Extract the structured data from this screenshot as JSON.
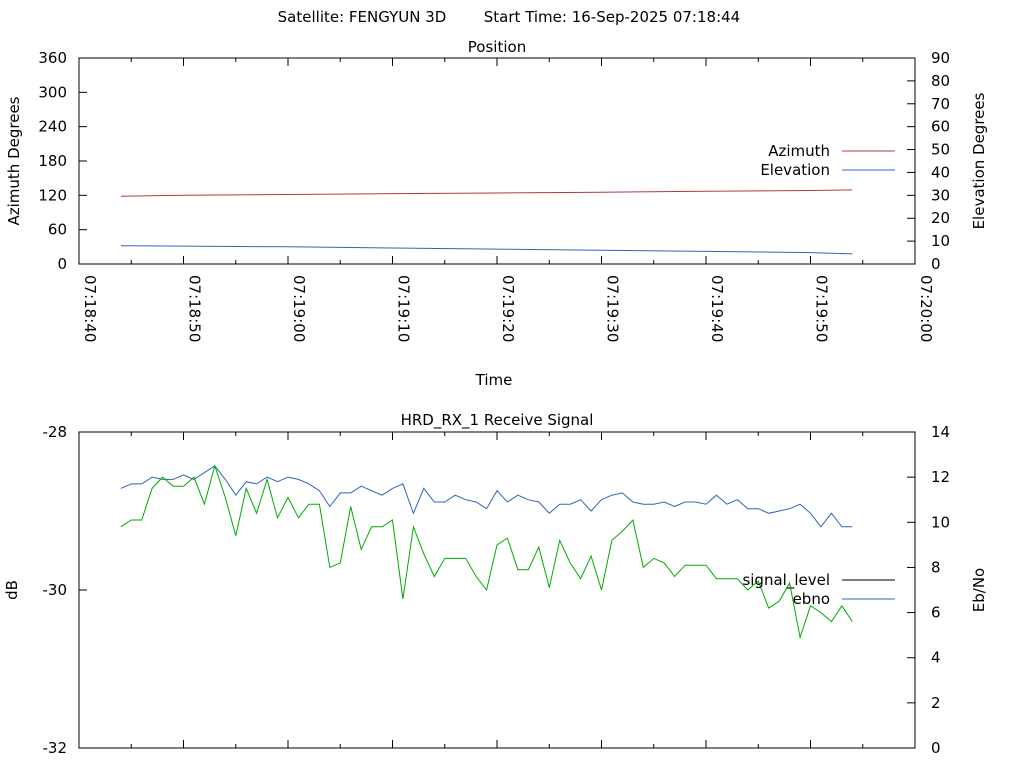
{
  "header": {
    "satellite": "Satellite: FENGYUN 3D",
    "start_time": "Start Time: 16-Sep-2025 07:18:44"
  },
  "colors": {
    "azimuth": "#b03a3a",
    "elevation": "#2f64b8",
    "signal_level": "#000000",
    "signal_trace": "#00aa00",
    "ebno": "#2f64b8",
    "axis": "#000000"
  },
  "chart_data": [
    {
      "type": "line",
      "title": "Position",
      "xlabel": "Time",
      "ylabel": "Azimuth Degrees",
      "y2label": "Elevation Degrees",
      "xlim": [
        "07:18:40",
        "07:20:00"
      ],
      "x_ticks": [
        "07:18:40",
        "07:18:50",
        "07:19:00",
        "07:19:10",
        "07:19:20",
        "07:19:30",
        "07:19:40",
        "07:19:50",
        "07:20:00"
      ],
      "ylim": [
        0,
        360
      ],
      "y_ticks": [
        0,
        60,
        120,
        180,
        240,
        300,
        360
      ],
      "y2lim": [
        0,
        90
      ],
      "y2_ticks": [
        0,
        10,
        20,
        30,
        40,
        50,
        60,
        70,
        80,
        90
      ],
      "legend_position": "right",
      "series": [
        {
          "name": "Azimuth",
          "axis": "y",
          "x": [
            "07:18:44",
            "07:18:50",
            "07:19:00",
            "07:19:10",
            "07:19:20",
            "07:19:30",
            "07:19:40",
            "07:19:50",
            "07:19:54"
          ],
          "values": [
            118.5,
            120,
            121.5,
            123,
            124,
            125.5,
            127,
            128.5,
            129.5
          ]
        },
        {
          "name": "Elevation",
          "axis": "y2",
          "x": [
            "07:18:44",
            "07:18:50",
            "07:19:00",
            "07:19:10",
            "07:19:20",
            "07:19:30",
            "07:19:40",
            "07:19:50",
            "07:19:54"
          ],
          "values": [
            8,
            7.8,
            7.5,
            7,
            6.5,
            6,
            5.5,
            5,
            4.4
          ]
        }
      ]
    },
    {
      "type": "line",
      "title": "HRD_RX_1 Receive Signal",
      "ylabel": "dB",
      "y2label": "Eb/No",
      "xlim": [
        "07:18:40",
        "07:20:00"
      ],
      "ylim": [
        -32,
        -28
      ],
      "y_ticks": [
        -32,
        -30,
        -28
      ],
      "y2lim": [
        0,
        14
      ],
      "y2_ticks": [
        0,
        2,
        4,
        6,
        8,
        10,
        12,
        14
      ],
      "legend_position": "right",
      "series": [
        {
          "name": "signal_level",
          "axis": "y",
          "values": []
        },
        {
          "name": "ebno",
          "axis": "y2",
          "x_seconds_from_start": [
            4,
            5,
            6,
            7,
            8,
            9,
            10,
            11,
            12,
            13,
            14,
            15,
            16,
            17,
            18,
            19,
            20,
            21,
            22,
            23,
            24,
            25,
            26,
            27,
            28,
            29,
            30,
            31,
            32,
            33,
            34,
            35,
            36,
            37,
            38,
            39,
            40,
            41,
            42,
            43,
            44,
            45,
            46,
            47,
            48,
            49,
            50,
            51,
            52,
            53,
            54,
            55,
            56,
            57,
            58,
            59,
            60,
            61,
            62,
            63,
            64,
            65,
            66,
            67,
            68,
            69,
            70,
            71,
            72,
            73,
            74
          ],
          "values": [
            11.5,
            11.7,
            11.7,
            12.0,
            11.9,
            11.9,
            12.1,
            11.9,
            12.2,
            12.5,
            11.9,
            11.2,
            11.8,
            11.7,
            12.0,
            11.8,
            12.0,
            11.9,
            11.7,
            11.4,
            10.7,
            11.3,
            11.3,
            11.6,
            11.4,
            11.2,
            11.5,
            11.7,
            10.4,
            11.5,
            10.9,
            10.9,
            11.2,
            11.0,
            10.9,
            10.6,
            11.4,
            10.9,
            11.2,
            11.0,
            10.9,
            10.4,
            10.8,
            10.8,
            11.0,
            10.5,
            11.0,
            11.2,
            11.3,
            10.9,
            10.8,
            10.8,
            10.9,
            10.7,
            10.9,
            10.9,
            10.8,
            11.2,
            10.8,
            11.0,
            10.6,
            10.6,
            10.4,
            10.5,
            10.6,
            10.8,
            10.4,
            9.8,
            10.4,
            9.8,
            9.8
          ]
        },
        {
          "name": "",
          "axis": "y2",
          "x_seconds_from_start": [
            4,
            5,
            6,
            7,
            8,
            9,
            10,
            11,
            12,
            13,
            14,
            15,
            16,
            17,
            18,
            19,
            20,
            21,
            22,
            23,
            24,
            25,
            26,
            27,
            28,
            29,
            30,
            31,
            32,
            33,
            34,
            35,
            36,
            37,
            38,
            39,
            40,
            41,
            42,
            43,
            44,
            45,
            46,
            47,
            48,
            49,
            50,
            51,
            52,
            53,
            54,
            55,
            56,
            57,
            58,
            59,
            60,
            61,
            62,
            63,
            64,
            65,
            66,
            67,
            68,
            69,
            70,
            71,
            72,
            73,
            74
          ],
          "values": [
            9.8,
            10.1,
            10.1,
            11.5,
            12.0,
            11.6,
            11.6,
            12.0,
            10.8,
            12.5,
            11.1,
            9.4,
            11.5,
            10.4,
            11.9,
            10.2,
            11.1,
            10.2,
            10.8,
            10.8,
            8.0,
            8.2,
            10.7,
            8.8,
            9.8,
            9.8,
            10.1,
            6.6,
            9.8,
            8.6,
            7.6,
            8.4,
            8.4,
            8.4,
            7.6,
            7.0,
            9.0,
            9.3,
            7.9,
            7.9,
            8.9,
            7.1,
            9.2,
            8.2,
            7.5,
            8.5,
            7.0,
            9.2,
            9.6,
            10.1,
            8.0,
            8.4,
            8.2,
            7.6,
            8.1,
            8.1,
            8.1,
            7.5,
            7.5,
            7.5,
            7.0,
            7.4,
            6.2,
            6.5,
            7.3,
            4.9,
            6.3,
            6.0,
            5.6,
            6.3,
            5.6
          ]
        }
      ]
    }
  ]
}
